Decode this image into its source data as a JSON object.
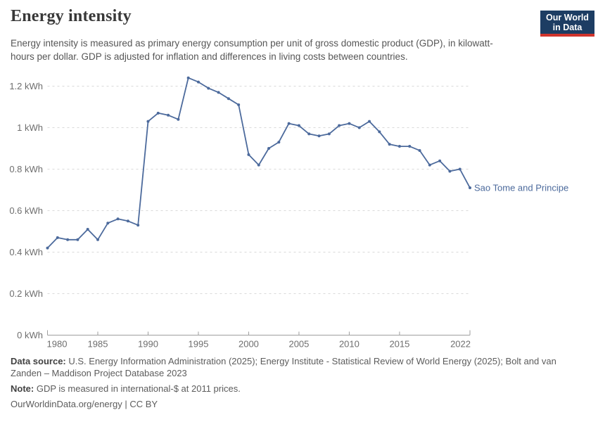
{
  "header": {
    "title": "Energy intensity",
    "subtitle": "Energy intensity is measured as primary energy consumption per unit of gross domestic product (GDP), in kilowatt-hours per dollar. GDP is adjusted for inflation and differences in living costs between countries.",
    "logo_line1": "Our World",
    "logo_line2": "in Data"
  },
  "chart_data": {
    "type": "line",
    "title": "Energy intensity",
    "unit": "kWh",
    "xlim": [
      1980,
      2022
    ],
    "ylim": [
      0,
      1.28
    ],
    "grid": "horizontal-dashed",
    "legend_position": "end-of-line",
    "x_ticks": [
      1980,
      1985,
      1990,
      1995,
      2000,
      2005,
      2010,
      2015,
      2022
    ],
    "y_tick_values": [
      0,
      0.2,
      0.4,
      0.6,
      0.8,
      1,
      1.2
    ],
    "y_tick_labels": [
      "0 kWh",
      "0.2 kWh",
      "0.4 kWh",
      "0.6 kWh",
      "0.8 kWh",
      "1 kWh",
      "1.2 kWh"
    ],
    "series": [
      {
        "name": "Sao Tome and Principe",
        "color": "#4c6a9c",
        "x": [
          1980,
          1981,
          1982,
          1983,
          1984,
          1985,
          1986,
          1987,
          1988,
          1989,
          1990,
          1991,
          1992,
          1993,
          1994,
          1995,
          1996,
          1997,
          1998,
          1999,
          2000,
          2001,
          2002,
          2003,
          2004,
          2005,
          2006,
          2007,
          2008,
          2009,
          2010,
          2011,
          2012,
          2013,
          2014,
          2015,
          2016,
          2017,
          2018,
          2019,
          2020,
          2021,
          2022
        ],
        "values": [
          0.42,
          0.47,
          0.46,
          0.46,
          0.51,
          0.46,
          0.54,
          0.56,
          0.55,
          0.53,
          1.03,
          1.07,
          1.06,
          1.04,
          1.24,
          1.22,
          1.19,
          1.17,
          1.14,
          1.11,
          0.87,
          0.82,
          0.9,
          0.93,
          1.02,
          1.01,
          0.97,
          0.96,
          0.97,
          1.01,
          1.02,
          1.0,
          1.03,
          0.98,
          0.92,
          0.91,
          0.91,
          0.89,
          0.82,
          0.84,
          0.79,
          0.8,
          0.71
        ]
      }
    ]
  },
  "footer": {
    "data_source_label": "Data source:",
    "data_source_text": "U.S. Energy Information Administration (2025); Energy Institute - Statistical Review of World Energy (2025); Bolt and van Zanden – Maddison Project Database 2023",
    "note_label": "Note:",
    "note_text": "GDP is measured in international-$ at 2011 prices.",
    "url": "OurWorldinData.org/energy",
    "separator": " | ",
    "license": "CC BY"
  },
  "colors": {
    "series_blue": "#4c6a9c",
    "brand_navy": "#1d3d63",
    "brand_red": "#d0342c",
    "grid": "#d9d9d9",
    "axis": "#9e9e9e",
    "tick_text": "#6e6e6e"
  }
}
